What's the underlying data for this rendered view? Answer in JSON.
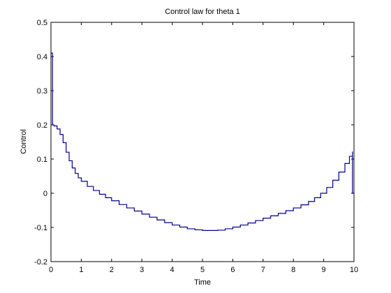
{
  "chart_data": {
    "type": "line",
    "title": "Control law for theta 1",
    "xlabel": "Time",
    "ylabel": "Control",
    "xlim": [
      0,
      10
    ],
    "ylim": [
      -0.2,
      0.5
    ],
    "xticks": [
      "0",
      "1",
      "2",
      "3",
      "4",
      "5",
      "6",
      "7",
      "8",
      "9",
      "10"
    ],
    "yticks": [
      "-0.2",
      "-0.1",
      "0",
      "0.1",
      "0.2",
      "0.3",
      "0.4",
      "0.5"
    ],
    "grid": false,
    "line_style": "stairs",
    "line_color": "#00008b",
    "series": [
      {
        "x": [
          0,
          0.05,
          0.05,
          0.1,
          0.2,
          0.3,
          0.4,
          0.5,
          0.6,
          0.7,
          0.8,
          0.9,
          1.0,
          1.2,
          1.4,
          1.6,
          1.8,
          2.0,
          2.25,
          2.5,
          2.75,
          3.0,
          3.25,
          3.5,
          3.75,
          4.0,
          4.25,
          4.5,
          4.75,
          5.0,
          5.25,
          5.5,
          5.75,
          6.0,
          6.25,
          6.5,
          6.75,
          7.0,
          7.25,
          7.5,
          7.75,
          8.0,
          8.25,
          8.5,
          8.7,
          8.9,
          9.1,
          9.3,
          9.5,
          9.7,
          9.85,
          9.95,
          9.95,
          10.0
        ],
        "y": [
          0.41,
          0.41,
          0.2,
          0.197,
          0.188,
          0.172,
          0.148,
          0.12,
          0.095,
          0.074,
          0.058,
          0.045,
          0.035,
          0.02,
          0.008,
          -0.003,
          -0.013,
          -0.022,
          -0.033,
          -0.043,
          -0.052,
          -0.061,
          -0.07,
          -0.078,
          -0.086,
          -0.093,
          -0.099,
          -0.104,
          -0.107,
          -0.109,
          -0.109,
          -0.108,
          -0.104,
          -0.099,
          -0.093,
          -0.087,
          -0.08,
          -0.073,
          -0.066,
          -0.059,
          -0.051,
          -0.043,
          -0.034,
          -0.024,
          -0.013,
          0.0,
          0.017,
          0.038,
          0.062,
          0.087,
          0.108,
          0.122,
          0.0,
          0.0
        ]
      }
    ]
  }
}
